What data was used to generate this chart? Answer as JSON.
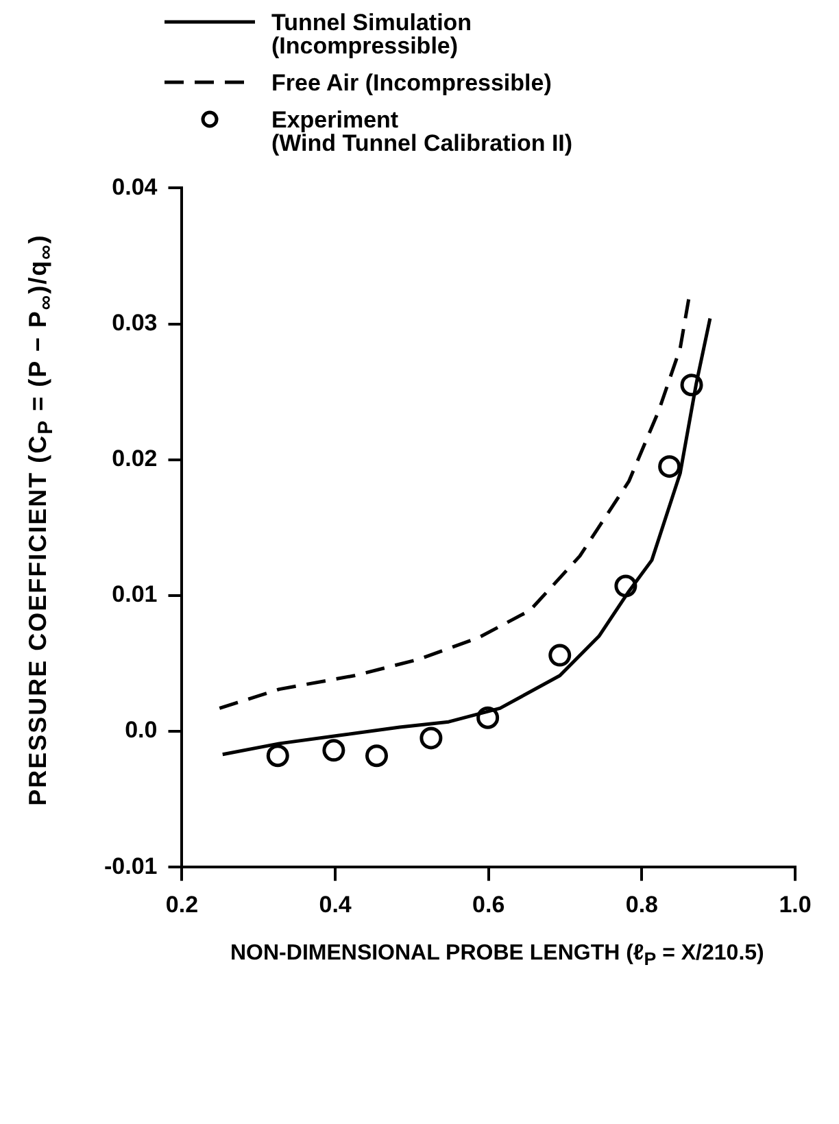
{
  "chart_data": {
    "type": "line",
    "xlabel": "NON-DIMENSIONAL PROBE LENGTH (ℓ$_{P}$ = X/210.5)",
    "ylabel": "PRESSURE COEFFICIENT (C$_{P}$ = (P − P$_{∞}$)/q$_{∞}$)",
    "xlim": [
      0.2,
      1.0
    ],
    "xticks": [
      {
        "value": 0.2,
        "label": "0.2"
      },
      {
        "value": 0.4,
        "label": "0.4"
      },
      {
        "value": 0.6,
        "label": "0.6"
      },
      {
        "value": 0.8,
        "label": "0.8"
      },
      {
        "value": 1.0,
        "label": "1.0"
      }
    ],
    "ylim": [
      -0.01,
      0.04
    ],
    "yticks": [
      {
        "value": -0.01,
        "label": "-0.01"
      },
      {
        "value": 0,
        "label": "0.0"
      },
      {
        "value": 0.01,
        "label": "0.01"
      },
      {
        "value": 0.02,
        "label": "0.02"
      },
      {
        "value": 0.03,
        "label": "0.03"
      },
      {
        "value": 0.04,
        "label": "0.04"
      }
    ],
    "grid": false,
    "legend": "top",
    "series": [
      {
        "name": "Tunnel Simulation\n(Incompressible)",
        "line_style": "solid",
        "marker": "none",
        "color": "#000000",
        "x": [
          0.253,
          0.327,
          0.405,
          0.484,
          0.548,
          0.615,
          0.693,
          0.744,
          0.783,
          0.813,
          0.85,
          0.871,
          0.889
        ],
        "values": [
          -0.0017,
          -0.0009,
          -0.0003,
          0.0003,
          0.0007,
          0.0017,
          0.0041,
          0.007,
          0.0103,
          0.0126,
          0.019,
          0.0256,
          0.0304
        ]
      },
      {
        "name": "Free Air (Incompressible)",
        "line_style": "dashed",
        "marker": "none",
        "color": "#000000",
        "x": [
          0.249,
          0.327,
          0.425,
          0.509,
          0.587,
          0.654,
          0.719,
          0.783,
          0.822,
          0.85,
          0.862
        ],
        "values": [
          0.0017,
          0.0031,
          0.0041,
          0.0053,
          0.0069,
          0.0089,
          0.0129,
          0.0184,
          0.0236,
          0.0282,
          0.0321
        ]
      },
      {
        "name": "Experiment\n(Wind Tunnel Calibration II)",
        "type": "scatter",
        "marker": "circle",
        "color": "#000000",
        "x": [
          0.325,
          0.398,
          0.454,
          0.525,
          0.599,
          0.693,
          0.779,
          0.836,
          0.865
        ],
        "values": [
          -0.0018,
          -0.0014,
          -0.0018,
          -0.0005,
          0.001,
          0.0056,
          0.0107,
          0.0195,
          0.0255
        ]
      }
    ]
  }
}
